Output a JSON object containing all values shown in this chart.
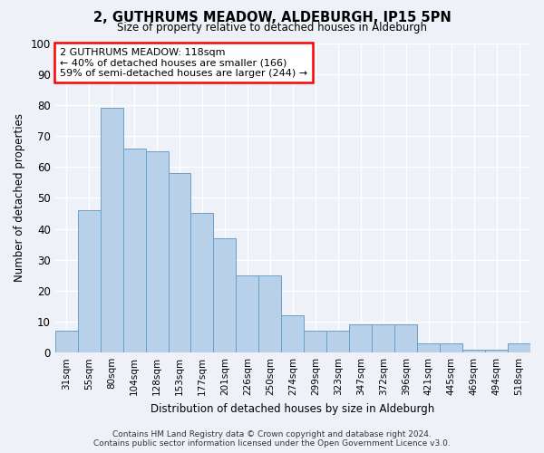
{
  "title": "2, GUTHRUMS MEADOW, ALDEBURGH, IP15 5PN",
  "subtitle": "Size of property relative to detached houses in Aldeburgh",
  "xlabel": "Distribution of detached houses by size in Aldeburgh",
  "ylabel": "Number of detached properties",
  "categories": [
    "31sqm",
    "55sqm",
    "80sqm",
    "104sqm",
    "128sqm",
    "153sqm",
    "177sqm",
    "201sqm",
    "226sqm",
    "250sqm",
    "274sqm",
    "299sqm",
    "323sqm",
    "347sqm",
    "372sqm",
    "396sqm",
    "421sqm",
    "445sqm",
    "469sqm",
    "494sqm",
    "518sqm"
  ],
  "bar_heights": [
    7,
    46,
    79,
    66,
    65,
    58,
    45,
    37,
    25,
    25,
    12,
    7,
    7,
    9,
    9,
    9,
    3,
    3,
    1,
    1,
    3
  ],
  "bar_color": "#b8d0e8",
  "bar_edge_color": "#6aa0c8",
  "annotation_line1": "2 GUTHRUMS MEADOW: 118sqm",
  "annotation_line2": "← 40% of detached houses are smaller (166)",
  "annotation_line3": "59% of semi-detached houses are larger (244) →",
  "ylim": [
    0,
    100
  ],
  "background_color": "#eef2f8",
  "grid_color": "#ffffff",
  "footer_line1": "Contains HM Land Registry data © Crown copyright and database right 2024.",
  "footer_line2": "Contains public sector information licensed under the Open Government Licence v3.0."
}
